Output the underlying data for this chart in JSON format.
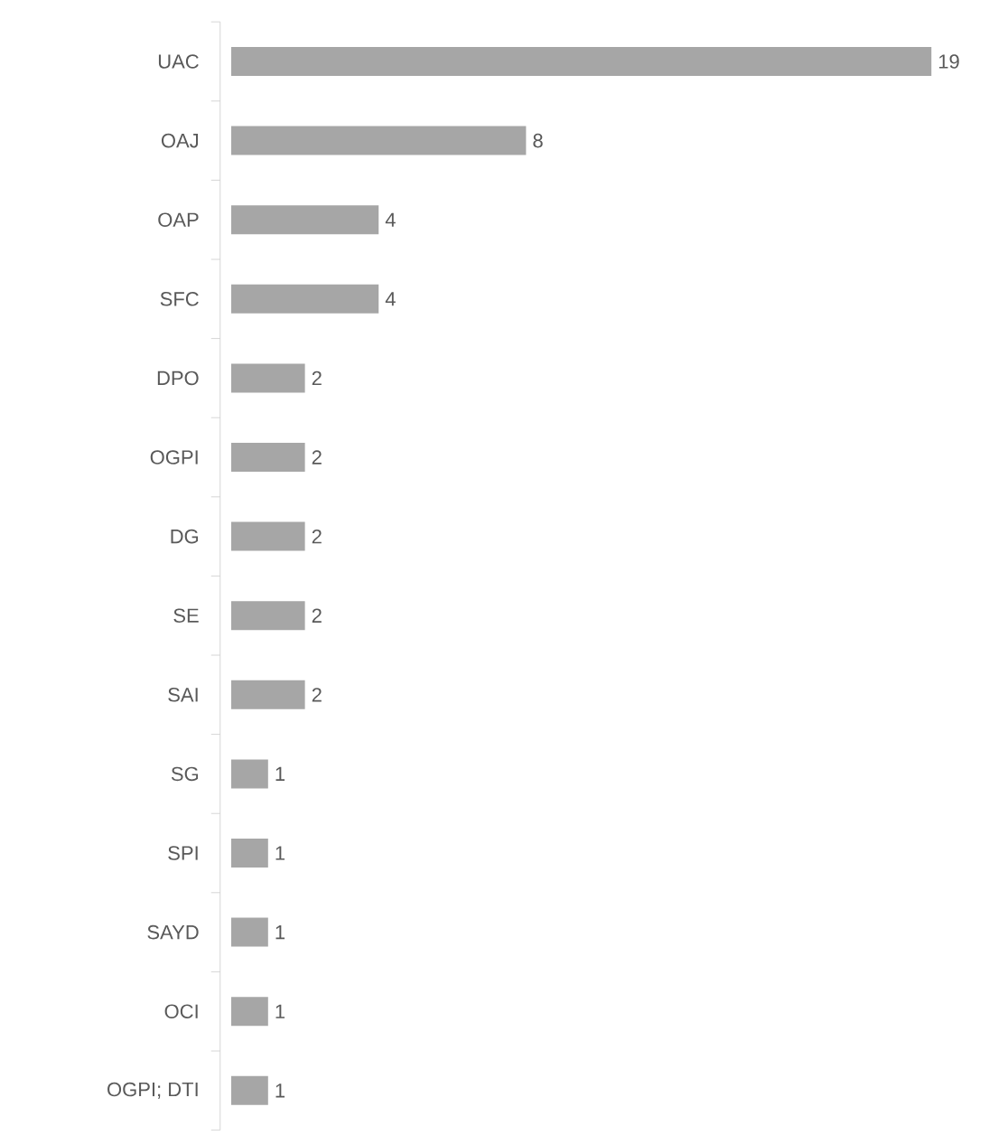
{
  "chart_data": {
    "type": "bar",
    "orientation": "horizontal",
    "color": "#a6a6a6",
    "data_labels": true,
    "categories": [
      "UAC",
      "OAJ",
      "OAP",
      "SFC",
      "DPO",
      "OGPI",
      "DG",
      "SE",
      "SAI",
      "SG",
      "SPI",
      "SAYD",
      "OCI",
      "OGPI; DTI"
    ],
    "values": [
      19,
      8,
      4,
      4,
      2,
      2,
      2,
      2,
      2,
      1,
      1,
      1,
      1,
      1
    ]
  }
}
